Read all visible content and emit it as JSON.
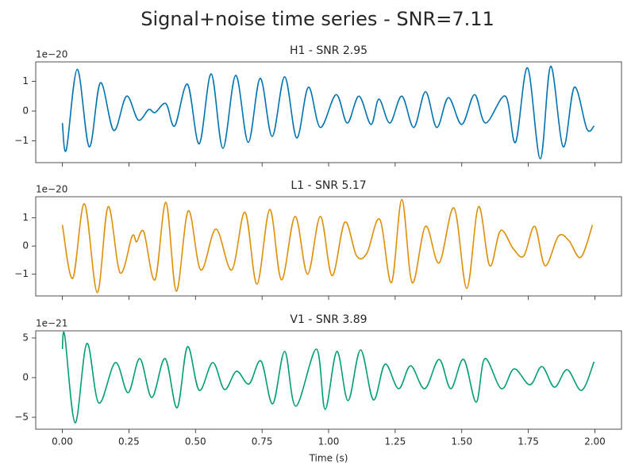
{
  "title": "Signal+noise time series - SNR=7.11",
  "chart_data": [
    {
      "type": "line",
      "title": "H1 - SNR 2.95",
      "offset_label": "1e−20",
      "xlim": [
        -0.1,
        2.1
      ],
      "xticks": [
        0,
        0.25,
        0.5,
        0.75,
        1,
        1.25,
        1.5,
        1.75,
        2
      ],
      "ylim": [
        -1.73,
        1.65
      ],
      "yticks": [
        {
          "value": -1,
          "label": "−1"
        },
        0,
        1
      ],
      "x": [
        0,
        0.015,
        0.056,
        0.101,
        0.143,
        0.193,
        0.241,
        0.285,
        0.324,
        0.348,
        0.389,
        0.422,
        0.47,
        0.514,
        0.559,
        0.603,
        0.651,
        0.698,
        0.743,
        0.788,
        0.835,
        0.88,
        0.924,
        0.969,
        1.028,
        1.07,
        1.114,
        1.159,
        1.189,
        1.23,
        1.275,
        1.32,
        1.364,
        1.406,
        1.45,
        1.5,
        1.548,
        1.59,
        1.664,
        1.702,
        1.747,
        1.795,
        1.834,
        1.881,
        1.923,
        1.97,
        1.997
      ],
      "series": [
        {
          "color": "#0173b2",
          "values": [
            -0.4,
            -1.3,
            1.4,
            -1.2,
            0.95,
            -0.65,
            0.5,
            -0.3,
            0.05,
            -0.05,
            0.25,
            -0.5,
            0.9,
            -1.1,
            1.25,
            -1.25,
            1.2,
            -1.05,
            1.1,
            -0.85,
            1.15,
            -0.9,
            0.8,
            -0.55,
            0.55,
            -0.4,
            0.5,
            -0.45,
            0.4,
            -0.4,
            0.5,
            -0.55,
            0.65,
            -0.55,
            0.45,
            -0.45,
            0.55,
            -0.4,
            0.5,
            -1.05,
            1.45,
            -1.6,
            1.5,
            -1.2,
            0.8,
            -0.6,
            -0.5
          ]
        }
      ]
    },
    {
      "type": "line",
      "title": "L1 - SNR 5.17",
      "offset_label": "1e−20",
      "xlim": [
        -0.1,
        2.1
      ],
      "xticks": [
        0,
        0.25,
        0.5,
        0.75,
        1,
        1.25,
        1.5,
        1.75,
        2
      ],
      "ylim": [
        -1.77,
        1.75
      ],
      "yticks": [
        {
          "value": -1,
          "label": "−1"
        },
        0,
        1
      ],
      "x": [
        0,
        0.039,
        0.083,
        0.131,
        0.172,
        0.217,
        0.262,
        0.279,
        0.306,
        0.348,
        0.389,
        0.428,
        0.473,
        0.52,
        0.577,
        0.636,
        0.686,
        0.731,
        0.779,
        0.823,
        0.874,
        0.921,
        0.969,
        1.013,
        1.061,
        1.105,
        1.144,
        1.192,
        1.236,
        1.275,
        1.314,
        1.364,
        1.415,
        1.471,
        1.519,
        1.563,
        1.605,
        1.646,
        1.694,
        1.733,
        1.774,
        1.813,
        1.863,
        1.902,
        1.947,
        1.991
      ],
      "series": [
        {
          "color": "#de8f05",
          "values": [
            0.75,
            -1.15,
            1.5,
            -1.65,
            1.4,
            -0.95,
            0.35,
            0.15,
            0.5,
            -1.2,
            1.55,
            -1.6,
            1.25,
            -0.85,
            0.6,
            -0.85,
            1.2,
            -1.35,
            1.3,
            -1.2,
            1.05,
            -1.0,
            1.05,
            -1.05,
            0.85,
            -0.35,
            -0.25,
            0.95,
            -1.3,
            1.65,
            -1.3,
            0.7,
            -0.6,
            1.35,
            -1.5,
            1.4,
            -0.7,
            0.55,
            -0.1,
            -0.35,
            0.7,
            -0.7,
            0.35,
            0.2,
            -0.4,
            0.75
          ]
        }
      ]
    },
    {
      "type": "line",
      "title": "V1 - SNR 3.89",
      "offset_label": "1e−21",
      "xlabel": "Time (s)",
      "xlim": [
        -0.1,
        2.1
      ],
      "xticks": [
        {
          "value": 0,
          "label": "0.00"
        },
        0.25,
        {
          "value": 0.5,
          "label": "0.50"
        },
        0.75,
        {
          "value": 1,
          "label": "1.00"
        },
        1.25,
        {
          "value": 1.5,
          "label": "1.50"
        },
        1.75,
        {
          "value": 2,
          "label": "2.00"
        }
      ],
      "ylim": [
        -6.5,
        5.9
      ],
      "yticks": [
        {
          "value": -5,
          "label": "−5"
        },
        0,
        5
      ],
      "x": [
        0,
        0.009,
        0.048,
        0.092,
        0.137,
        0.199,
        0.247,
        0.291,
        0.336,
        0.386,
        0.431,
        0.47,
        0.514,
        0.565,
        0.609,
        0.654,
        0.701,
        0.746,
        0.79,
        0.835,
        0.877,
        0.954,
        0.987,
        1.031,
        1.073,
        1.12,
        1.168,
        1.212,
        1.263,
        1.308,
        1.361,
        1.415,
        1.459,
        1.507,
        1.554,
        1.587,
        1.649,
        1.697,
        1.756,
        1.801,
        1.848,
        1.896,
        1.95,
        1.997
      ],
      "series": [
        {
          "color": "#029e73",
          "values": [
            3.6,
            5.3,
            -5.7,
            4.3,
            -3.2,
            1.9,
            -1.9,
            2.4,
            -2.5,
            2.4,
            -3.8,
            3.9,
            -1.6,
            1.9,
            -1.5,
            0.8,
            -0.8,
            2.1,
            -3.3,
            3.3,
            -3.6,
            3.6,
            -4.0,
            3.3,
            -2.9,
            3.5,
            -2.8,
            1.7,
            -1.4,
            1.5,
            -1.4,
            2.3,
            -1.4,
            2.3,
            -3.1,
            2.4,
            -1.4,
            1.1,
            -0.9,
            1.4,
            -1.2,
            1.0,
            -1.6,
            2.0
          ]
        }
      ]
    }
  ]
}
